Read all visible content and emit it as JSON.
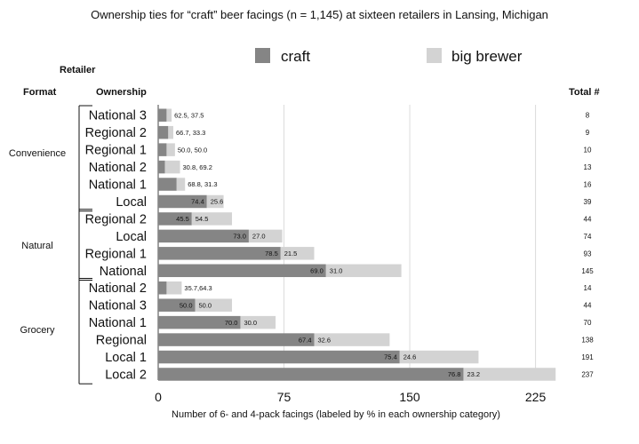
{
  "chart_data": {
    "type": "bar",
    "orientation": "horizontal",
    "stacked": true,
    "title": "Ownership ties for “craft” beer facings (n = 1,145) at sixteen retailers in Lansing, Michigan",
    "xlabel": "Number of 6- and 4-pack facings (labeled by % in each ownership category)",
    "ylabel": "",
    "xlim": [
      0,
      236
    ],
    "xticks": [
      0,
      75,
      150,
      225
    ],
    "grid": "vertical",
    "legend": {
      "placement": "top",
      "entries": [
        "craft",
        "big brewer"
      ]
    },
    "headers": {
      "retailer": "Retailer",
      "format": "Format",
      "ownership": "Ownership",
      "total": "Total #"
    },
    "groups": [
      {
        "name": "Convenience",
        "start": 0,
        "end": 5
      },
      {
        "name": "Natural",
        "start": 6,
        "end": 9
      },
      {
        "name": "Grocery",
        "start": 10,
        "end": 15
      }
    ],
    "series": [
      {
        "name": "craft",
        "color": "#858585"
      },
      {
        "name": "big brewer",
        "color": "#d3d3d3"
      }
    ],
    "rows": [
      {
        "category": "National 3",
        "total": 8,
        "craft_pct": 62.5,
        "big_pct": 37.5,
        "label": "62.5, 37.5"
      },
      {
        "category": "Regional 2",
        "total": 9,
        "craft_pct": 66.7,
        "big_pct": 33.3,
        "label": "66.7, 33.3"
      },
      {
        "category": "Regional 1",
        "total": 10,
        "craft_pct": 50.0,
        "big_pct": 50.0,
        "label": "50.0, 50.0"
      },
      {
        "category": "National 2",
        "total": 13,
        "craft_pct": 30.8,
        "big_pct": 69.2,
        "label": "30.8, 69.2"
      },
      {
        "category": "National 1",
        "total": 16,
        "craft_pct": 68.8,
        "big_pct": 31.3,
        "label": "68.8, 31.3"
      },
      {
        "category": "Local",
        "total": 39,
        "craft_pct": 74.4,
        "big_pct": 25.6,
        "craft_label": "74.4",
        "big_label": "25.6"
      },
      {
        "category": "Regional 2",
        "total": 44,
        "craft_pct": 45.5,
        "big_pct": 54.5,
        "craft_label": "45.5",
        "big_label": "54.5"
      },
      {
        "category": "Local",
        "total": 74,
        "craft_pct": 73.0,
        "big_pct": 27.0,
        "craft_label": "73.0",
        "big_label": "27.0"
      },
      {
        "category": "Regional 1",
        "total": 93,
        "craft_pct": 78.5,
        "big_pct": 21.5,
        "craft_label": "78.5",
        "big_label": "21.5"
      },
      {
        "category": "National",
        "total": 145,
        "craft_pct": 69.0,
        "big_pct": 31.0,
        "craft_label": "69.0",
        "big_label": "31.0"
      },
      {
        "category": "National 2",
        "total": 14,
        "craft_pct": 35.7,
        "big_pct": 64.3,
        "label": "35.7,64.3"
      },
      {
        "category": "National 3",
        "total": 44,
        "craft_pct": 50.0,
        "big_pct": 50.0,
        "craft_label": "50.0",
        "big_label": "50.0"
      },
      {
        "category": "National 1",
        "total": 70,
        "craft_pct": 70.0,
        "big_pct": 30.0,
        "craft_label": "70.0",
        "big_label": "30.0"
      },
      {
        "category": "Regional",
        "total": 138,
        "craft_pct": 67.4,
        "big_pct": 32.6,
        "craft_label": "67.4",
        "big_label": "32.6"
      },
      {
        "category": "Local 1",
        "total": 191,
        "craft_pct": 75.4,
        "big_pct": 24.6,
        "craft_label": "75.4",
        "big_label": "24.6"
      },
      {
        "category": "Local 2",
        "total": 237,
        "craft_pct": 76.8,
        "big_pct": 23.2,
        "craft_label": "76.8",
        "big_label": "23.2"
      }
    ]
  }
}
